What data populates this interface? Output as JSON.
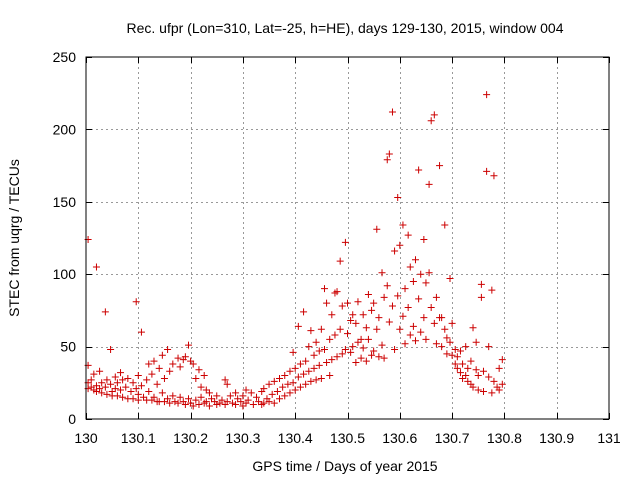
{
  "chart_data": {
    "type": "scatter",
    "title": "Rec. ufpr (Lon=310, Lat=-25, h=HE), days 129-130, 2015, window 004",
    "xlabel": "GPS time / Days of year 2015",
    "ylabel": "STEC from uqrg / TECUs",
    "xlim": [
      130,
      131
    ],
    "ylim": [
      0,
      250
    ],
    "xticks": [
      130,
      130.1,
      130.2,
      130.3,
      130.4,
      130.5,
      130.6,
      130.7,
      130.8,
      130.9,
      131
    ],
    "xtick_labels": [
      "130",
      "130.1",
      "130.2",
      "130.3",
      "130.4",
      "130.5",
      "130.6",
      "130.7",
      "130.8",
      "130.9",
      "131"
    ],
    "yticks": [
      0,
      50,
      100,
      150,
      200,
      250
    ],
    "ytick_labels": [
      "0",
      "50",
      "100",
      "150",
      "200",
      "250"
    ],
    "grid": true,
    "marker": "+",
    "color": "#cc0000",
    "series": [
      {
        "name": "STEC",
        "points": [
          [
            130.004,
            124
          ],
          [
            130.004,
            37
          ],
          [
            130.004,
            25
          ],
          [
            130.004,
            21
          ],
          [
            130.01,
            27
          ],
          [
            130.01,
            22
          ],
          [
            130.015,
            31
          ],
          [
            130.015,
            20
          ],
          [
            130.02,
            105
          ],
          [
            130.02,
            23
          ],
          [
            130.02,
            19
          ],
          [
            130.026,
            33
          ],
          [
            130.026,
            21
          ],
          [
            130.03,
            25
          ],
          [
            130.03,
            18
          ],
          [
            130.037,
            74
          ],
          [
            130.037,
            22
          ],
          [
            130.04,
            27
          ],
          [
            130.04,
            17
          ],
          [
            130.047,
            48
          ],
          [
            130.047,
            24
          ],
          [
            130.05,
            19
          ],
          [
            130.05,
            16
          ],
          [
            130.056,
            29
          ],
          [
            130.056,
            21
          ],
          [
            130.06,
            25
          ],
          [
            130.06,
            16
          ],
          [
            130.066,
            32
          ],
          [
            130.066,
            20
          ],
          [
            130.07,
            27
          ],
          [
            130.07,
            15
          ],
          [
            130.076,
            22
          ],
          [
            130.08,
            28
          ],
          [
            130.08,
            14
          ],
          [
            130.086,
            19
          ],
          [
            130.09,
            25
          ],
          [
            130.09,
            14
          ],
          [
            130.096,
            81
          ],
          [
            130.096,
            21
          ],
          [
            130.1,
            30
          ],
          [
            130.1,
            17
          ],
          [
            130.1,
            13
          ],
          [
            130.106,
            60
          ],
          [
            130.106,
            23
          ],
          [
            130.11,
            15
          ],
          [
            130.116,
            27
          ],
          [
            130.116,
            13
          ],
          [
            130.12,
            38
          ],
          [
            130.12,
            19
          ],
          [
            130.126,
            31
          ],
          [
            130.126,
            13
          ],
          [
            130.13,
            40
          ],
          [
            130.13,
            15
          ],
          [
            130.136,
            24
          ],
          [
            130.136,
            12
          ],
          [
            130.14,
            35
          ],
          [
            130.14,
            12
          ],
          [
            130.146,
            44
          ],
          [
            130.146,
            18
          ],
          [
            130.15,
            28
          ],
          [
            130.15,
            12
          ],
          [
            130.156,
            48
          ],
          [
            130.156,
            14
          ],
          [
            130.16,
            33
          ],
          [
            130.16,
            11
          ],
          [
            130.166,
            38
          ],
          [
            130.166,
            16
          ],
          [
            130.17,
            12
          ],
          [
            130.176,
            42
          ],
          [
            130.176,
            11
          ],
          [
            130.18,
            36
          ],
          [
            130.18,
            15
          ],
          [
            130.186,
            41
          ],
          [
            130.186,
            12
          ],
          [
            130.19,
            43
          ],
          [
            130.19,
            10
          ],
          [
            130.196,
            51
          ],
          [
            130.196,
            14
          ],
          [
            130.2,
            40
          ],
          [
            130.2,
            11
          ],
          [
            130.205,
            38
          ],
          [
            130.205,
            9
          ],
          [
            130.21,
            28
          ],
          [
            130.21,
            13
          ],
          [
            130.216,
            34
          ],
          [
            130.216,
            10
          ],
          [
            130.22,
            22
          ],
          [
            130.22,
            15
          ],
          [
            130.226,
            30
          ],
          [
            130.226,
            11
          ],
          [
            130.23,
            20
          ],
          [
            130.23,
            12
          ],
          [
            130.236,
            18
          ],
          [
            130.236,
            9
          ],
          [
            130.24,
            14
          ],
          [
            130.246,
            12
          ],
          [
            130.25,
            16
          ],
          [
            130.25,
            10
          ],
          [
            130.256,
            11
          ],
          [
            130.26,
            13
          ],
          [
            130.266,
            27
          ],
          [
            130.266,
            10
          ],
          [
            130.27,
            24
          ],
          [
            130.27,
            12
          ],
          [
            130.276,
            16
          ],
          [
            130.28,
            11
          ],
          [
            130.286,
            18
          ],
          [
            130.286,
            10
          ],
          [
            130.29,
            14
          ],
          [
            130.296,
            12
          ],
          [
            130.3,
            16
          ],
          [
            130.3,
            9
          ],
          [
            130.306,
            20
          ],
          [
            130.306,
            11
          ],
          [
            130.31,
            13
          ],
          [
            130.316,
            18
          ],
          [
            130.32,
            10
          ],
          [
            130.326,
            15
          ],
          [
            130.33,
            12
          ],
          [
            130.336,
            19
          ],
          [
            130.336,
            10
          ],
          [
            130.34,
            21
          ],
          [
            130.34,
            11
          ],
          [
            130.346,
            14
          ],
          [
            130.35,
            24
          ],
          [
            130.35,
            12
          ],
          [
            130.356,
            17
          ],
          [
            130.36,
            26
          ],
          [
            130.36,
            11
          ],
          [
            130.366,
            19
          ],
          [
            130.37,
            28
          ],
          [
            130.37,
            14
          ],
          [
            130.376,
            22
          ],
          [
            130.38,
            30
          ],
          [
            130.38,
            16
          ],
          [
            130.386,
            24
          ],
          [
            130.39,
            33
          ],
          [
            130.39,
            18
          ],
          [
            130.396,
            46
          ],
          [
            130.396,
            25
          ],
          [
            130.4,
            35
          ],
          [
            130.4,
            20
          ],
          [
            130.406,
            64
          ],
          [
            130.406,
            29
          ],
          [
            130.41,
            38
          ],
          [
            130.41,
            22
          ],
          [
            130.416,
            74
          ],
          [
            130.416,
            31
          ],
          [
            130.42,
            40
          ],
          [
            130.42,
            24
          ],
          [
            130.426,
            50
          ],
          [
            130.426,
            33
          ],
          [
            130.43,
            61
          ],
          [
            130.43,
            26
          ],
          [
            130.436,
            44
          ],
          [
            130.436,
            35
          ],
          [
            130.44,
            53
          ],
          [
            130.44,
            27
          ],
          [
            130.446,
            47
          ],
          [
            130.446,
            37
          ],
          [
            130.45,
            62
          ],
          [
            130.45,
            28
          ],
          [
            130.456,
            90
          ],
          [
            130.456,
            48
          ],
          [
            130.46,
            80
          ],
          [
            130.46,
            39
          ],
          [
            130.466,
            55
          ],
          [
            130.466,
            30
          ],
          [
            130.47,
            72
          ],
          [
            130.47,
            41
          ],
          [
            130.476,
            87
          ],
          [
            130.476,
            58
          ],
          [
            130.48,
            88
          ],
          [
            130.48,
            43
          ],
          [
            130.486,
            109
          ],
          [
            130.486,
            62
          ],
          [
            130.49,
            78
          ],
          [
            130.49,
            45
          ],
          [
            130.496,
            122
          ],
          [
            130.496,
            48
          ],
          [
            130.5,
            80
          ],
          [
            130.5,
            59
          ],
          [
            130.506,
            68
          ],
          [
            130.506,
            46
          ],
          [
            130.51,
            72
          ],
          [
            130.51,
            50
          ],
          [
            130.516,
            66
          ],
          [
            130.516,
            39
          ],
          [
            130.52,
            81
          ],
          [
            130.52,
            53
          ],
          [
            130.526,
            55
          ],
          [
            130.526,
            42
          ],
          [
            130.53,
            72
          ],
          [
            130.53,
            49
          ],
          [
            130.536,
            63
          ],
          [
            130.536,
            40
          ],
          [
            130.54,
            86
          ],
          [
            130.54,
            55
          ],
          [
            130.546,
            75
          ],
          [
            130.546,
            44
          ],
          [
            130.55,
            80
          ],
          [
            130.55,
            47
          ],
          [
            130.556,
            131
          ],
          [
            130.556,
            62
          ],
          [
            130.56,
            70
          ],
          [
            130.56,
            43
          ],
          [
            130.566,
            101
          ],
          [
            130.566,
            51
          ],
          [
            130.57,
            84
          ],
          [
            130.57,
            42
          ],
          [
            130.576,
            179
          ],
          [
            130.576,
            92
          ],
          [
            130.58,
            183
          ],
          [
            130.58,
            67
          ],
          [
            130.586,
            212
          ],
          [
            130.586,
            78
          ],
          [
            130.59,
            116
          ],
          [
            130.59,
            48
          ],
          [
            130.596,
            153
          ],
          [
            130.596,
            85
          ],
          [
            130.6,
            120
          ],
          [
            130.6,
            62
          ],
          [
            130.606,
            134
          ],
          [
            130.606,
            71
          ],
          [
            130.61,
            90
          ],
          [
            130.61,
            52
          ],
          [
            130.616,
            127
          ],
          [
            130.616,
            77
          ],
          [
            130.62,
            105
          ],
          [
            130.62,
            58
          ],
          [
            130.626,
            95
          ],
          [
            130.626,
            64
          ],
          [
            130.63,
            110
          ],
          [
            130.63,
            54
          ],
          [
            130.636,
            172
          ],
          [
            130.636,
            83
          ],
          [
            130.64,
            100
          ],
          [
            130.64,
            60
          ],
          [
            130.646,
            124
          ],
          [
            130.646,
            70
          ],
          [
            130.65,
            94
          ],
          [
            130.65,
            55
          ],
          [
            130.656,
            162
          ],
          [
            130.656,
            101
          ],
          [
            130.66,
            206
          ],
          [
            130.66,
            77
          ],
          [
            130.666,
            210
          ],
          [
            130.666,
            66
          ],
          [
            130.67,
            84
          ],
          [
            130.67,
            52
          ],
          [
            130.676,
            175
          ],
          [
            130.676,
            70
          ],
          [
            130.68,
            70
          ],
          [
            130.68,
            50
          ],
          [
            130.686,
            134
          ],
          [
            130.686,
            62
          ],
          [
            130.69,
            56
          ],
          [
            130.69,
            45
          ],
          [
            130.696,
            97
          ],
          [
            130.696,
            53
          ],
          [
            130.7,
            66
          ],
          [
            130.7,
            44
          ],
          [
            130.706,
            48
          ],
          [
            130.706,
            38
          ],
          [
            130.71,
            43
          ],
          [
            130.71,
            35
          ],
          [
            130.716,
            47
          ],
          [
            130.716,
            32
          ],
          [
            130.72,
            38
          ],
          [
            130.72,
            28
          ],
          [
            130.726,
            50
          ],
          [
            130.726,
            30
          ],
          [
            130.73,
            35
          ],
          [
            130.73,
            26
          ],
          [
            130.736,
            40
          ],
          [
            130.736,
            24
          ],
          [
            130.74,
            63
          ],
          [
            130.74,
            22
          ],
          [
            130.746,
            53
          ],
          [
            130.746,
            34
          ],
          [
            130.75,
            30
          ],
          [
            130.75,
            20
          ],
          [
            130.756,
            93
          ],
          [
            130.756,
            84
          ],
          [
            130.76,
            33
          ],
          [
            130.76,
            19
          ],
          [
            130.766,
            224
          ],
          [
            130.766,
            171
          ],
          [
            130.77,
            50
          ],
          [
            130.77,
            29
          ],
          [
            130.776,
            89
          ],
          [
            130.776,
            18
          ],
          [
            130.78,
            168
          ],
          [
            130.78,
            26
          ],
          [
            130.786,
            22
          ],
          [
            130.79,
            35
          ],
          [
            130.79,
            20
          ],
          [
            130.796,
            41
          ],
          [
            130.796,
            24
          ]
        ]
      }
    ]
  }
}
